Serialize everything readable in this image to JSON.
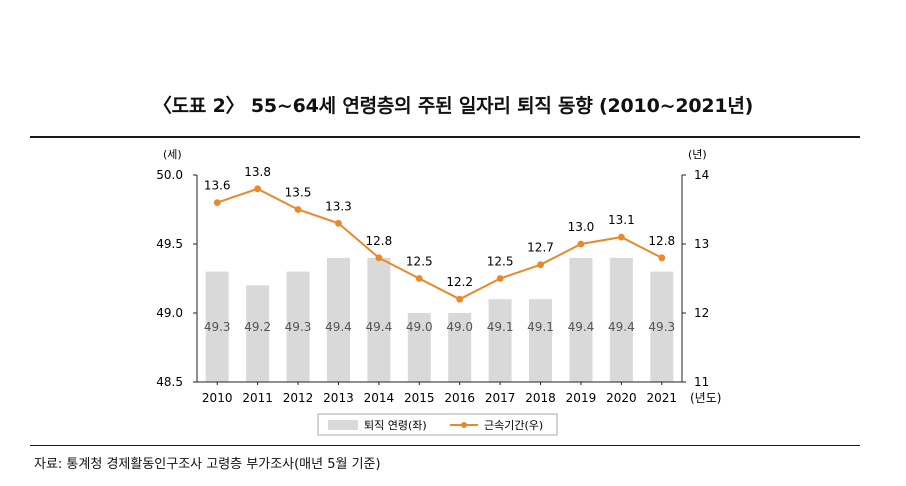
{
  "title": "〈도표 2〉 55~64세 연령층의 주된 일자리 퇴직 동향 (2010~2021년)",
  "source": "자료: 통계청 경제활동인구조사 고령층 부가조사(매년 5월 기준)",
  "chart_data": {
    "type": "bar+line",
    "categories": [
      "2010",
      "2011",
      "2012",
      "2013",
      "2014",
      "2015",
      "2016",
      "2017",
      "2018",
      "2019",
      "2020",
      "2021"
    ],
    "x_unit_label": "(년도)",
    "series": [
      {
        "name": "퇴직 연령(좌)",
        "type": "bar",
        "axis": "left",
        "values": [
          49.3,
          49.2,
          49.3,
          49.4,
          49.4,
          49.0,
          49.0,
          49.1,
          49.1,
          49.4,
          49.4,
          49.3
        ],
        "labels": [
          "49.3",
          "49.2",
          "49.3",
          "49.4",
          "49.4",
          "49.0",
          "49.0",
          "49.1",
          "49.1",
          "49.4",
          "49.4",
          "49.3"
        ],
        "color": "#d9d9d9"
      },
      {
        "name": "근속기간(우)",
        "type": "line",
        "axis": "right",
        "values": [
          13.6,
          13.8,
          13.5,
          13.3,
          12.8,
          12.5,
          12.2,
          12.5,
          12.7,
          13.0,
          13.1,
          12.8
        ],
        "labels": [
          "13.6",
          "13.8",
          "13.5",
          "13.3",
          "12.8",
          "12.5",
          "12.2",
          "12.5",
          "12.7",
          "13.0",
          "13.1",
          "12.8"
        ],
        "color": "#e8892c"
      }
    ],
    "left_axis": {
      "unit": "(세)",
      "min": 48.5,
      "max": 50.0,
      "ticks": [
        "48.5",
        "49.0",
        "49.5",
        "50.0"
      ]
    },
    "right_axis": {
      "unit": "(년)",
      "min": 11,
      "max": 14,
      "ticks": [
        "11",
        "12",
        "13",
        "14"
      ]
    }
  }
}
